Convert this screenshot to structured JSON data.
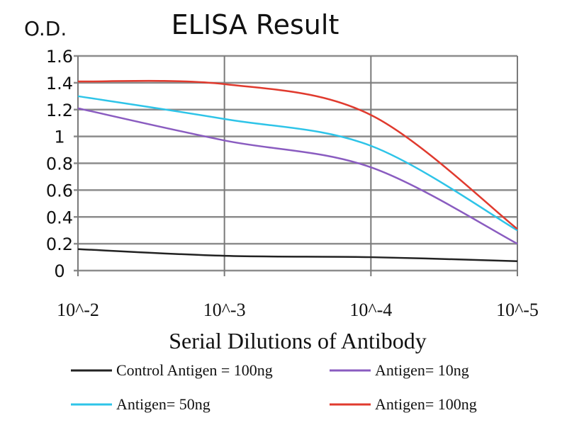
{
  "chart_data": {
    "type": "line",
    "title": "ELISA Result",
    "ylabel": "O.D.",
    "xlabel": "Serial Dilutions of Antibody",
    "x": [
      "10^-2",
      "10^-3",
      "10^-4",
      "10^-5"
    ],
    "ylim": [
      0,
      1.6
    ],
    "yticks": [
      "0",
      "0.2",
      "0.4",
      "0.6",
      "0.8",
      "1",
      "1.2",
      "1.4",
      "1.6"
    ],
    "grid": true,
    "legend_placement": "bottom",
    "series": [
      {
        "name": "Control Antigen = 100ng",
        "color": "#222222",
        "values": [
          0.16,
          0.11,
          0.1,
          0.07
        ]
      },
      {
        "name": "Antigen= 10ng",
        "color": "#8a5cc0",
        "values": [
          1.21,
          0.97,
          0.77,
          0.2
        ]
      },
      {
        "name": "Antigen= 50ng",
        "color": "#2ec4e8",
        "values": [
          1.3,
          1.13,
          0.93,
          0.3
        ]
      },
      {
        "name": "Antigen= 100ng",
        "color": "#e03a2e",
        "values": [
          1.41,
          1.39,
          1.16,
          0.31
        ]
      }
    ]
  }
}
